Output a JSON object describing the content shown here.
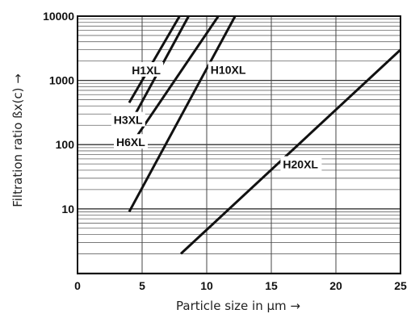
{
  "chart_data": {
    "type": "line",
    "xlabel": "Particle size in µm →",
    "ylabel": "Filtration ratio ßx(c) →",
    "xlim": [
      0,
      25
    ],
    "ylim": [
      1,
      10000
    ],
    "y_scale": "log",
    "grid": true,
    "x_ticks": [
      "0",
      "5",
      "10",
      "15",
      "20",
      "25"
    ],
    "y_ticks": [
      "10",
      "100",
      "1000",
      "10000"
    ],
    "series": [
      {
        "name": "H1XL",
        "x": [
          4.0,
          7.9
        ],
        "y": [
          450,
          10000
        ]
      },
      {
        "name": "H3XL",
        "x": [
          4.0,
          8.6
        ],
        "y": [
          200,
          10000
        ]
      },
      {
        "name": "H6XL",
        "x": [
          4.0,
          10.9
        ],
        "y": [
          90,
          10000
        ]
      },
      {
        "name": "H10XL",
        "x": [
          4.0,
          12.2
        ],
        "y": [
          9,
          10000
        ]
      },
      {
        "name": "H20XL",
        "x": [
          8.0,
          25.0
        ],
        "y": [
          2,
          3000
        ]
      }
    ]
  }
}
